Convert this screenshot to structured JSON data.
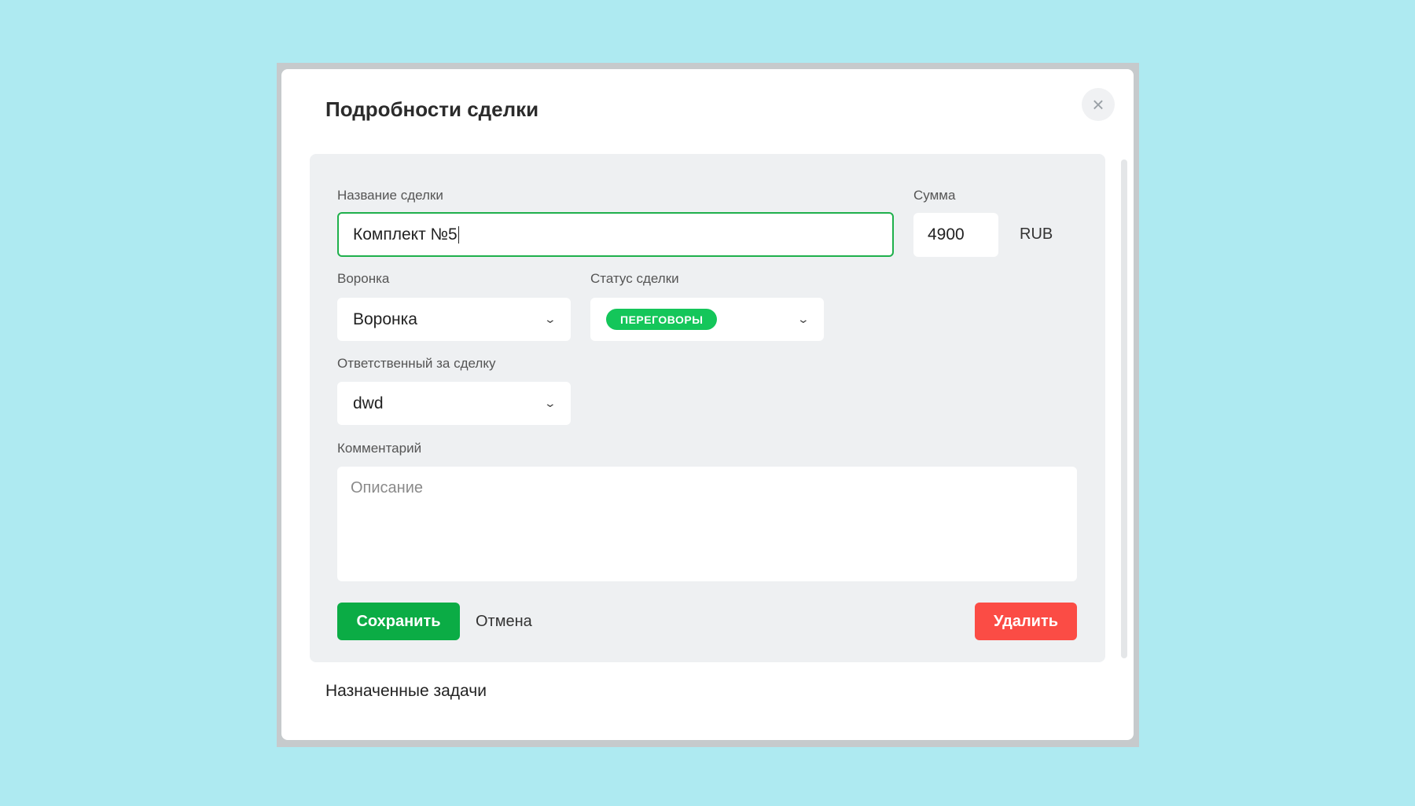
{
  "dialog": {
    "title": "Подробности сделки",
    "close_icon": "close-icon",
    "fields": {
      "name_label": "Название сделки",
      "name_value": "Комплект №5",
      "sum_label": "Сумма",
      "sum_value": "4900",
      "currency": "RUB",
      "funnel_label": "Воронка",
      "funnel_value": "Воронка",
      "status_label": "Статус сделки",
      "status_value": "ПЕРЕГОВОРЫ",
      "status_color": "#14c65a",
      "owner_label": "Ответственный за сделку",
      "owner_value": "dwd",
      "comment_label": "Комментарий",
      "comment_placeholder": "Описание"
    },
    "buttons": {
      "save": "Сохранить",
      "cancel": "Отмена",
      "delete": "Удалить"
    },
    "tasks_heading": "Назначенные задачи"
  }
}
